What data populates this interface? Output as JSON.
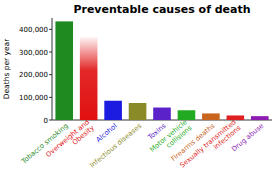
{
  "chart_data": {
    "type": "bar",
    "title": "Preventable causes of death",
    "y_label": "Deaths per year",
    "categories": [
      "Tobacco smoking",
      "Overweight and Obesity",
      "Alcohol",
      "Infectious diseases",
      "Toxins",
      "Motor vehicle collisions",
      "Firearms deaths",
      "Sexually transmitted infections",
      "Drug abuse"
    ],
    "values": [
      435000,
      365000,
      85000,
      75000,
      55000,
      43000,
      29000,
      20000,
      17000
    ],
    "colors": [
      "#1f8a1f",
      "#e01010",
      "#1c1ce0",
      "#8a8a26",
      "#5a22c8",
      "#22aa22",
      "#c8641e",
      "#e02020",
      "#8e1cb0"
    ],
    "ylim": [
      0,
      450000
    ],
    "yticks": [
      0,
      {
        "value": 100000,
        "label": "100,000"
      },
      {
        "value": 200000,
        "label": "200,000"
      },
      {
        "value": 300000,
        "label": "300,000"
      },
      {
        "value": 400000,
        "label": "400,000"
      }
    ],
    "grid": false
  }
}
